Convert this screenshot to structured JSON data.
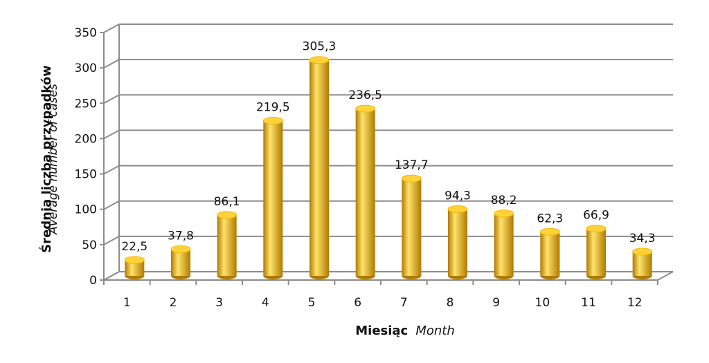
{
  "chart_data": {
    "type": "bar",
    "categories": [
      "1",
      "2",
      "3",
      "4",
      "5",
      "6",
      "7",
      "8",
      "9",
      "10",
      "11",
      "12"
    ],
    "values": [
      22.5,
      37.8,
      86.1,
      219.5,
      305.3,
      236.5,
      137.7,
      94.3,
      88.2,
      62.3,
      66.9,
      34.3
    ],
    "data_labels": [
      "22,5",
      "37,8",
      "86,1",
      "219,5",
      "305,3",
      "236,5",
      "137,7",
      "94,3",
      "88,2",
      "62,3",
      "66,9",
      "34,3"
    ],
    "title": "",
    "xlabel": "Miesiąc",
    "xlabel_secondary": "Month",
    "ylabel": "Średnia liczba przypadków",
    "ylabel_secondary": "Average number of cases",
    "ylim": [
      0,
      350
    ],
    "yticks": [
      0,
      50,
      100,
      150,
      200,
      250,
      300,
      350
    ],
    "grid": true,
    "legend": "none",
    "style": "3d-cylinder",
    "colors": {
      "bar_light": "#FFE36B",
      "bar_mid": "#F2B705",
      "bar_dark": "#B07A00",
      "bar_top": "#FFD23A",
      "grid": "#8c8c8c"
    }
  }
}
